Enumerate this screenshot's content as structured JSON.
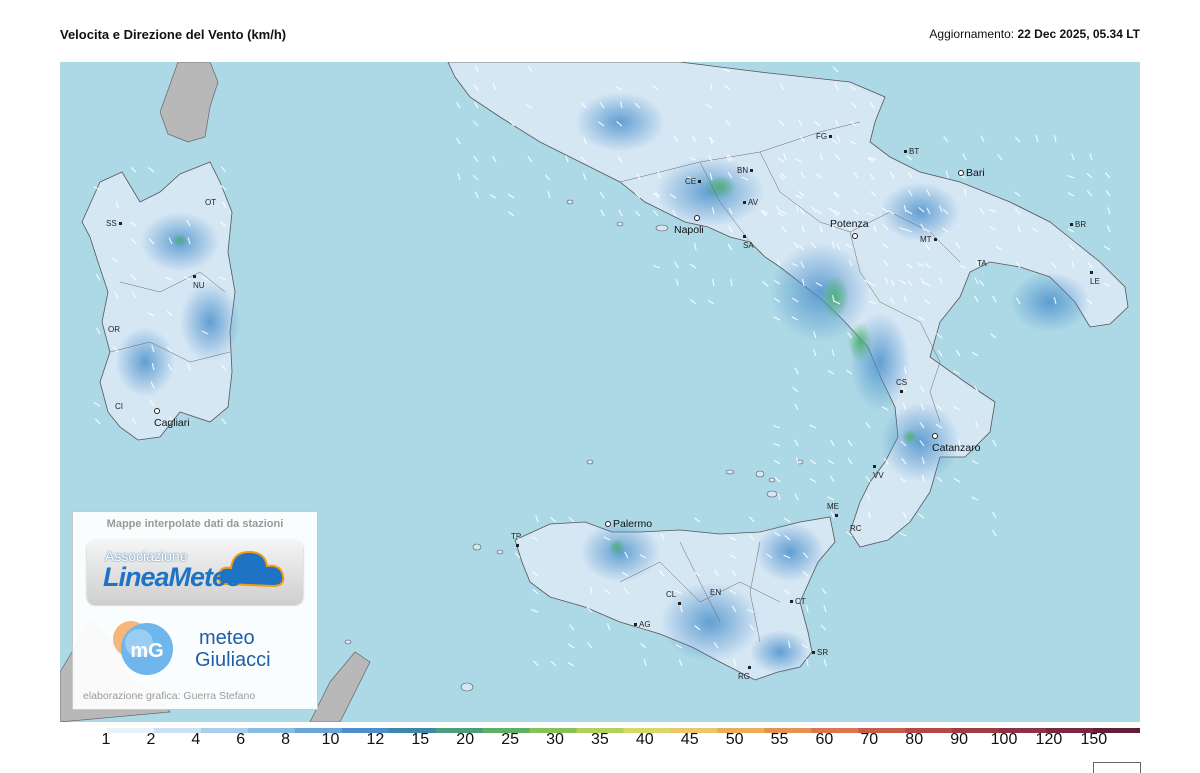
{
  "header": {
    "title": "Velocita e Direzione del Vento  (km/h)",
    "update_label": "Aggiornamento:",
    "update_value": "22 Dec 2025, 05.34 LT"
  },
  "map": {
    "sea_color": "#add8e6",
    "land_low_color": "#eef6fb",
    "land_mid_color": "#a9cbe8",
    "land_high_color": "#5b9fd2",
    "gust_color": "#4caf6e",
    "foreign_land_color": "#b8b8b8",
    "cities": [
      {
        "name": "SS",
        "major": false
      },
      {
        "name": "OT",
        "major": false
      },
      {
        "name": "NU",
        "major": false
      },
      {
        "name": "OR",
        "major": false
      },
      {
        "name": "CI",
        "major": false
      },
      {
        "name": "Cagliari",
        "major": true
      },
      {
        "name": "FG",
        "major": false
      },
      {
        "name": "BT",
        "major": false
      },
      {
        "name": "Bari",
        "major": true
      },
      {
        "name": "BR",
        "major": false
      },
      {
        "name": "TA",
        "major": false
      },
      {
        "name": "LE",
        "major": false
      },
      {
        "name": "MT",
        "major": false
      },
      {
        "name": "Potenza",
        "major": true
      },
      {
        "name": "BN",
        "major": false
      },
      {
        "name": "CE",
        "major": false
      },
      {
        "name": "AV",
        "major": false
      },
      {
        "name": "Napoli",
        "major": true
      },
      {
        "name": "SA",
        "major": false
      },
      {
        "name": "CS",
        "major": false
      },
      {
        "name": "Catanzaro",
        "major": true
      },
      {
        "name": "VV",
        "major": false
      },
      {
        "name": "RC",
        "major": false
      },
      {
        "name": "ME",
        "major": false
      },
      {
        "name": "Palermo",
        "major": true
      },
      {
        "name": "TP",
        "major": false
      },
      {
        "name": "CL",
        "major": false
      },
      {
        "name": "EN",
        "major": false
      },
      {
        "name": "CT",
        "major": false
      },
      {
        "name": "AG",
        "major": false
      },
      {
        "name": "SR",
        "major": false
      },
      {
        "name": "RG",
        "major": false
      }
    ]
  },
  "logos": {
    "caption": "Mappe interpolate dati da stazioni",
    "lineameteo_top": "Associazione",
    "lineameteo_a": "Linea",
    "lineameteo_b": "Meteo",
    "mg_initials": "mG",
    "mg_line1": "meteo",
    "mg_line2": "Giuliacci",
    "credit": "elaborazione grafica: Guerra Stefano"
  },
  "scale": {
    "labels": [
      "1",
      "2",
      "4",
      "6",
      "8",
      "10",
      "12",
      "15",
      "20",
      "25",
      "30",
      "35",
      "40",
      "45",
      "50",
      "55",
      "60",
      "70",
      "80",
      "90",
      "100",
      "120",
      "150"
    ],
    "colors": [
      "#ffffff",
      "#e6f1fa",
      "#c9e1f3",
      "#a9cfec",
      "#88bbe3",
      "#6aa6d8",
      "#4e8ec9",
      "#3f86ad",
      "#4d9c7c",
      "#5faf64",
      "#86c15a",
      "#b2d05a",
      "#d8d76a",
      "#e8c868",
      "#e9ad5b",
      "#e39253",
      "#d9774e",
      "#c95e48",
      "#b44a45",
      "#a03c46",
      "#8e3146",
      "#7a2842",
      "#651e3a"
    ]
  }
}
